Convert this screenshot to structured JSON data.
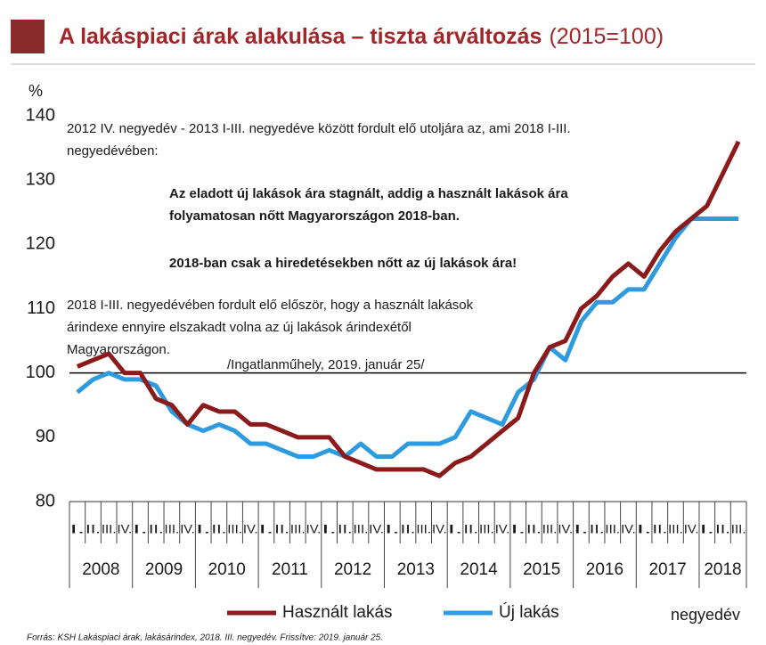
{
  "chart_data": {
    "type": "line",
    "title": "A lakáspiaci árak alakulása – tiszta árváltozás",
    "subtitle": "(2015=100)",
    "y_label": "%",
    "x_label": "negyedév",
    "categories": [
      "I.",
      "II.",
      "III.",
      "IV.",
      "I.",
      "II.",
      "III.",
      "IV.",
      "I.",
      "II.",
      "III.",
      "IV.",
      "I.",
      "II.",
      "III.",
      "IV.",
      "I.",
      "II.",
      "III.",
      "IV.",
      "I.",
      "II.",
      "III.",
      "IV.",
      "I.",
      "II.",
      "III.",
      "IV.",
      "I.",
      "II.",
      "III.",
      "IV.",
      "I.",
      "II.",
      "III.",
      "IV.",
      "I.",
      "II.",
      "III.",
      "IV.",
      "I.",
      "II.",
      "III."
    ],
    "years": [
      "2008",
      "2009",
      "2010",
      "2011",
      "2012",
      "2013",
      "2014",
      "2015",
      "2016",
      "2017",
      "2018"
    ],
    "series": [
      {
        "name": "Használt lakás",
        "color": "#8b1a1a",
        "values": [
          101,
          102,
          103,
          100,
          100,
          96,
          95,
          92,
          95,
          94,
          94,
          92,
          92,
          91,
          90,
          90,
          90,
          87,
          86,
          85,
          85,
          85,
          85,
          84,
          86,
          87,
          89,
          91,
          93,
          100,
          104,
          105,
          110,
          112,
          115,
          117,
          115,
          119,
          122,
          124,
          126,
          131,
          136
        ]
      },
      {
        "name": "Új lakás",
        "color": "#2e9be0",
        "values": [
          97,
          99,
          100,
          99,
          99,
          98,
          94,
          92,
          91,
          92,
          91,
          89,
          89,
          88,
          87,
          87,
          88,
          87,
          89,
          87,
          87,
          89,
          89,
          89,
          90,
          94,
          93,
          92,
          97,
          99,
          104,
          102,
          108,
          111,
          111,
          113,
          113,
          117,
          121,
          124,
          124,
          124,
          124
        ]
      }
    ],
    "reference_line": 100,
    "ylim": [
      80,
      140
    ],
    "yticks": [
      80,
      90,
      100,
      110,
      120,
      130,
      140
    ],
    "annotations": [
      "2012 IV. negyedév - 2013 I-III. negyedéve között fordult elő utoljára az, ami 2018 I-III.",
      "negyedévében:",
      "Az eladott új lakások ára stagnált, addig a használt lakások ára",
      "folyamatosan nőtt Magyarországon 2018-ban.",
      "2018-ban csak a hiredetésekben nőtt az új lakások ára!",
      "2018 I-III. negyedévében fordult elő először, hogy a használt lakások",
      "árindexe ennyire elszakadt volna az új lakások árindexétől",
      "Magyarországon.",
      "/Ingatlanműhely, 2019. január 25/"
    ],
    "source": "Forrás: KSH Lakáspiaci árak, lakásárindex, 2018. III. negyedév. Frissítve: 2019. január 25."
  }
}
